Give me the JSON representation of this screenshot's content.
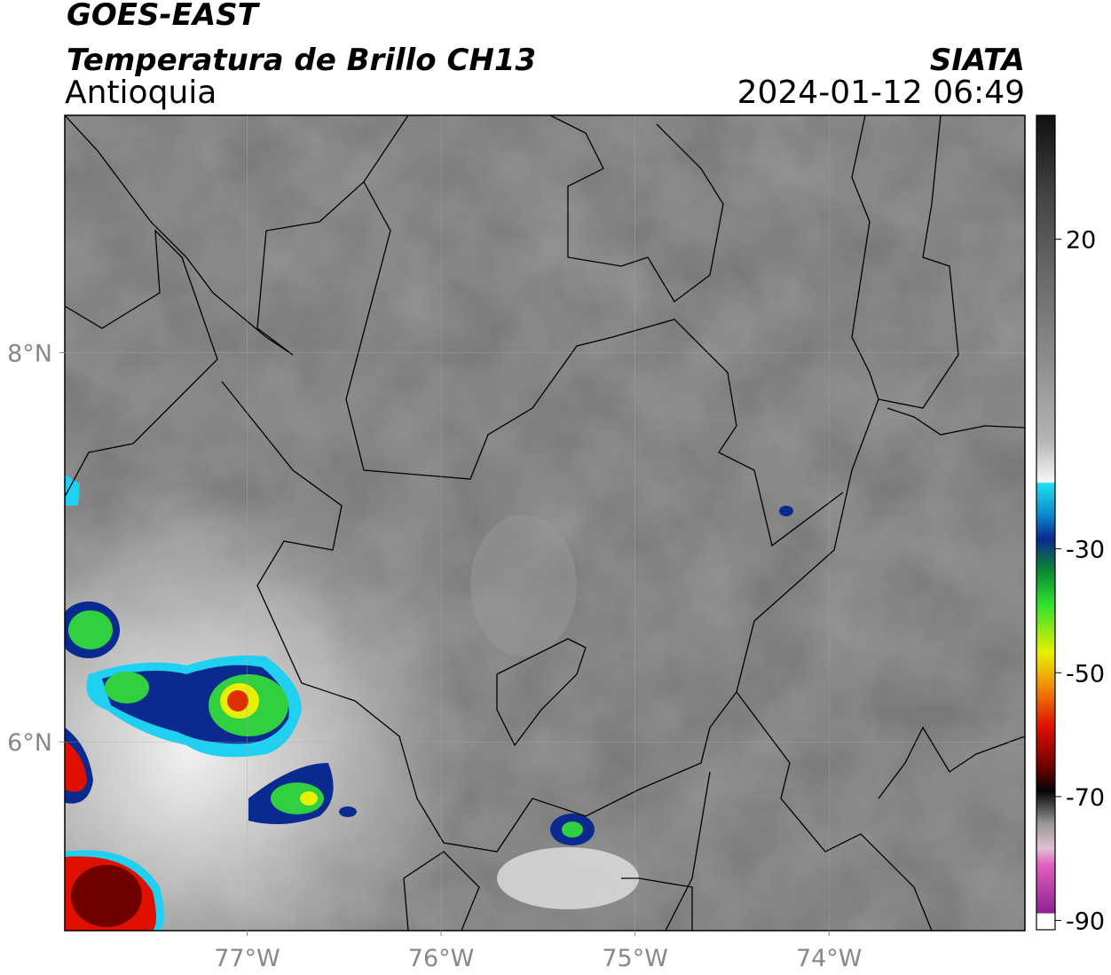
{
  "header": {
    "title": "GOES-EAST",
    "subtitle": "Temperatura de Brillo CH13",
    "region": "Antioquia",
    "source": "SIATA",
    "datetime": "2024-01-12 06:49"
  },
  "map": {
    "xlim": [
      -77.94,
      -72.99
    ],
    "ylim": [
      5.03,
      9.22
    ],
    "xticks": [
      {
        "value": -77,
        "label": "77°W"
      },
      {
        "value": -76,
        "label": "76°W"
      },
      {
        "value": -75,
        "label": "75°W"
      },
      {
        "value": -74,
        "label": "74°W"
      }
    ],
    "yticks": [
      {
        "value": 6,
        "label": "6°N"
      },
      {
        "value": 8,
        "label": "8°N"
      }
    ],
    "grid": true
  },
  "colorbar": {
    "lim": [
      -91.5,
      40
    ],
    "ticks": [
      20,
      -30,
      -50,
      -70,
      -90
    ]
  }
}
